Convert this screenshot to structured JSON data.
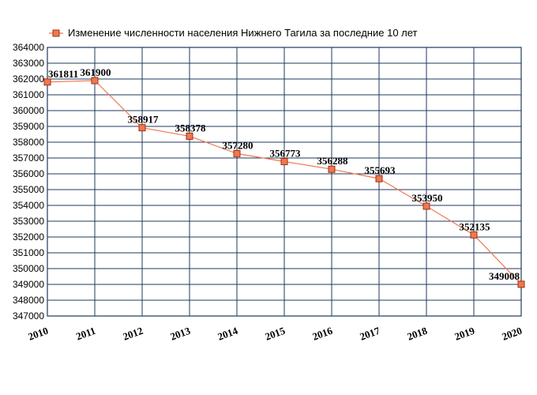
{
  "chart_data": {
    "type": "line",
    "title": "",
    "xlabel": "",
    "ylabel": "",
    "legend": {
      "position": "top-left",
      "entries": [
        "Изменение численности населения Нижнего Тагила за последние 10 лет"
      ]
    },
    "x": [
      "2010",
      "2011",
      "2012",
      "2013",
      "2014",
      "2015",
      "2016",
      "2017",
      "2018",
      "2019",
      "2020"
    ],
    "series": [
      {
        "name": "Изменение численности населения Нижнего Тагила за последние 10 лет",
        "values": [
          361811,
          361900,
          358917,
          358378,
          357280,
          356773,
          356288,
          355693,
          353950,
          352135,
          349008
        ],
        "labels": [
          "361811",
          "361900",
          "358917",
          "358378",
          "357280",
          "356773",
          "356288",
          "355693",
          "353950",
          "352135",
          "349008"
        ],
        "line_color": "#f07850",
        "marker_fill": "#f07850",
        "marker_stroke": "#a03010"
      }
    ],
    "ylim": [
      347000,
      364000
    ],
    "ystep": 1000,
    "grid": true,
    "grid_color": "#1f3a5f"
  }
}
